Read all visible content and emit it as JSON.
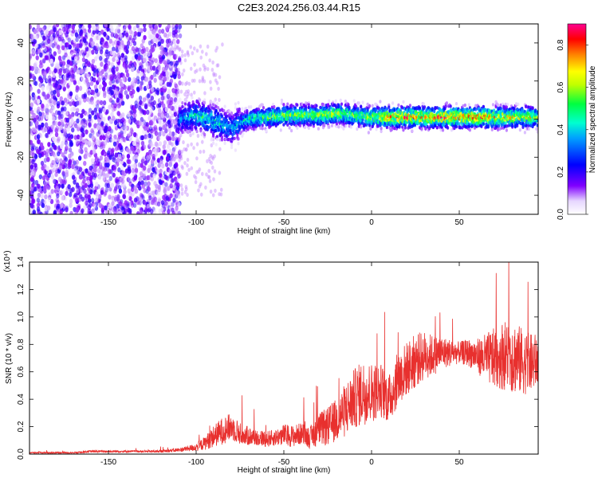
{
  "page": {
    "title": "C2E3.2024.256.03.44.R15"
  },
  "chart_data": [
    {
      "type": "heatmap",
      "xlabel": "Height of straight line (km)",
      "ylabel": "Frequency (Hz)",
      "xlim": [
        -195,
        95
      ],
      "ylim": [
        -50,
        50
      ],
      "xticks": [
        -150,
        -100,
        -50,
        0,
        50
      ],
      "yticks": [
        -40,
        -20,
        0,
        20,
        40
      ],
      "colorbar": {
        "label": "Normalized spectral amplitude",
        "range": [
          0.0,
          0.9
        ],
        "ticks": [
          0.0,
          0.2,
          0.4,
          0.6,
          0.8
        ],
        "colors": [
          "#ffffff",
          "#7000ff",
          "#0000ff",
          "#00c8ff",
          "#00ff80",
          "#c0ff00",
          "#ffff00",
          "#ff8000",
          "#ff0000",
          "#ff00a0"
        ]
      },
      "ridge": {
        "x": [
          -110,
          -100,
          -90,
          -85,
          -80,
          -75,
          -70,
          -60,
          -50,
          -40,
          -30,
          -20,
          -10,
          0,
          10,
          20,
          30,
          40,
          50,
          60,
          70,
          80,
          90
        ],
        "center_hz": [
          0,
          2,
          -1,
          -3,
          -5,
          -2,
          0,
          1,
          2,
          2,
          2,
          3,
          2,
          1,
          1,
          1,
          1,
          1,
          1,
          1,
          1,
          1,
          1
        ],
        "peak_amplitude": [
          0.35,
          0.5,
          0.5,
          0.45,
          0.4,
          0.45,
          0.5,
          0.6,
          0.65,
          0.65,
          0.65,
          0.65,
          0.65,
          0.65,
          0.8,
          0.85,
          0.8,
          0.85,
          0.85,
          0.85,
          0.8,
          0.75,
          0.7
        ]
      },
      "noise_region": {
        "x": [
          -195,
          -115
        ],
        "amplitude": 0.15
      }
    },
    {
      "type": "line",
      "xlabel": "Height of straight line (km)",
      "ylabel": "SNR (10 * v/v)",
      "y_multiplier": "(x10⁴)",
      "xlim": [
        -195,
        95
      ],
      "ylim": [
        0.0,
        1.4
      ],
      "xticks": [
        -150,
        -100,
        -50,
        0,
        50
      ],
      "yticks": [
        0.0,
        0.2,
        0.4,
        0.6,
        0.8,
        1.0,
        1.2,
        1.4
      ],
      "ytick_labels": [
        "0.0",
        "0.2",
        "0.4",
        "0.6",
        "0.8",
        "1.0",
        "1.2",
        "1.4"
      ],
      "color": "#e8302e",
      "series": [
        {
          "x": [
            -195,
            -180,
            -170,
            -160,
            -150,
            -140,
            -130,
            -120,
            -110,
            -105,
            -100,
            -95,
            -90,
            -85,
            -80,
            -75,
            -70,
            -65,
            -60,
            -55,
            -50,
            -45,
            -40,
            -35,
            -30,
            -25,
            -20,
            -15,
            -10,
            -5,
            0,
            5,
            10,
            15,
            20,
            25,
            30,
            35,
            40,
            45,
            50,
            55,
            60,
            65,
            70,
            75,
            80,
            85,
            90,
            95
          ],
          "values": [
            0.01,
            0.01,
            0.01,
            0.02,
            0.02,
            0.02,
            0.02,
            0.02,
            0.03,
            0.04,
            0.05,
            0.08,
            0.13,
            0.17,
            0.2,
            0.15,
            0.13,
            0.12,
            0.11,
            0.12,
            0.14,
            0.13,
            0.15,
            0.12,
            0.18,
            0.2,
            0.25,
            0.32,
            0.4,
            0.45,
            0.45,
            0.47,
            0.4,
            0.55,
            0.62,
            0.68,
            0.72,
            0.72,
            0.74,
            0.74,
            0.74,
            0.74,
            0.72,
            0.7,
            0.7,
            0.72,
            0.72,
            0.68,
            0.66,
            0.68
          ],
          "noise_amplitude": [
            0.005,
            0.005,
            0.005,
            0.008,
            0.008,
            0.008,
            0.008,
            0.01,
            0.015,
            0.02,
            0.03,
            0.05,
            0.08,
            0.1,
            0.1,
            0.08,
            0.07,
            0.06,
            0.06,
            0.06,
            0.08,
            0.08,
            0.08,
            0.08,
            0.12,
            0.14,
            0.16,
            0.2,
            0.22,
            0.24,
            0.22,
            0.2,
            0.18,
            0.2,
            0.2,
            0.2,
            0.18,
            0.15,
            0.12,
            0.1,
            0.08,
            0.1,
            0.12,
            0.18,
            0.22,
            0.25,
            0.28,
            0.25,
            0.22,
            0.2
          ]
        }
      ]
    }
  ]
}
